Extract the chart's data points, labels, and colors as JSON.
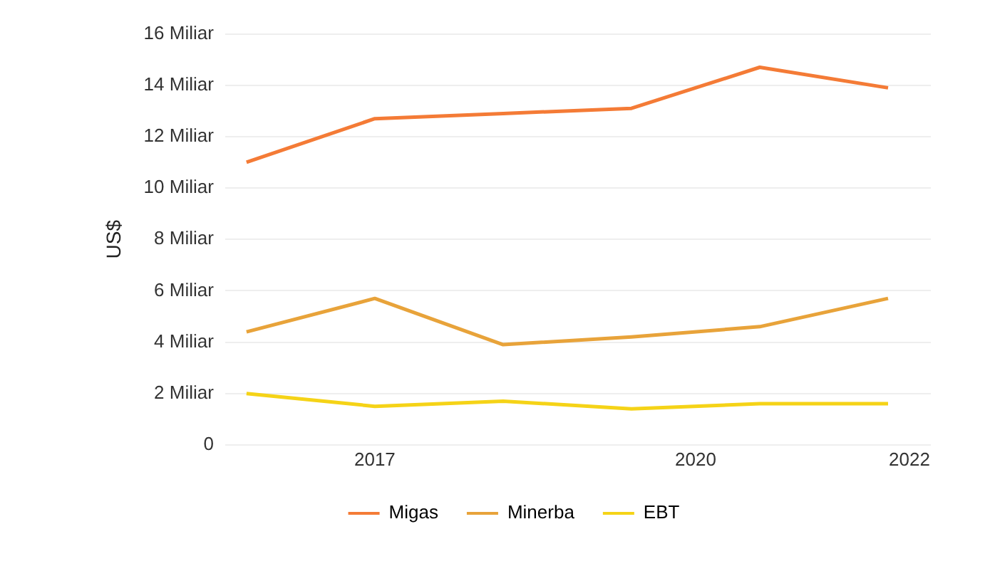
{
  "chart_data": {
    "type": "line",
    "ylabel": "US$",
    "xlim": [
      2015.6,
      2022.2
    ],
    "xticks": [
      2017,
      2020,
      2022
    ],
    "ylim": [
      0,
      16
    ],
    "yticks": [
      {
        "value": 0,
        "label": "0"
      },
      {
        "value": 2,
        "label": "2 Miliar"
      },
      {
        "value": 4,
        "label": "4 Miliar"
      },
      {
        "value": 6,
        "label": "6 Miliar"
      },
      {
        "value": 8,
        "label": "8 Miliar"
      },
      {
        "value": 10,
        "label": "10 Miliar"
      },
      {
        "value": 12,
        "label": "12 Miliar"
      },
      {
        "value": 14,
        "label": "14 Miliar"
      },
      {
        "value": 16,
        "label": "16 Miliar"
      }
    ],
    "grid": "y",
    "legend": "bottom",
    "marker": "none",
    "line_style": "solid",
    "series": [
      {
        "name": "Migas",
        "color": "#f47b36",
        "x": [
          2015.8,
          2017.0,
          2018.2,
          2019.4,
          2020.6,
          2021.8
        ],
        "values": [
          11.0,
          12.7,
          12.9,
          13.1,
          14.7,
          13.9
        ]
      },
      {
        "name": "Minerba",
        "color": "#e8a33a",
        "x": [
          2015.8,
          2017.0,
          2018.2,
          2019.4,
          2020.6,
          2021.8
        ],
        "values": [
          4.4,
          5.7,
          3.9,
          4.2,
          4.6,
          5.7
        ]
      },
      {
        "name": "EBT",
        "color": "#f5d317",
        "x": [
          2015.8,
          2017.0,
          2018.2,
          2019.4,
          2020.6,
          2021.8
        ],
        "values": [
          2.0,
          1.5,
          1.7,
          1.4,
          1.6,
          1.6
        ]
      }
    ]
  }
}
